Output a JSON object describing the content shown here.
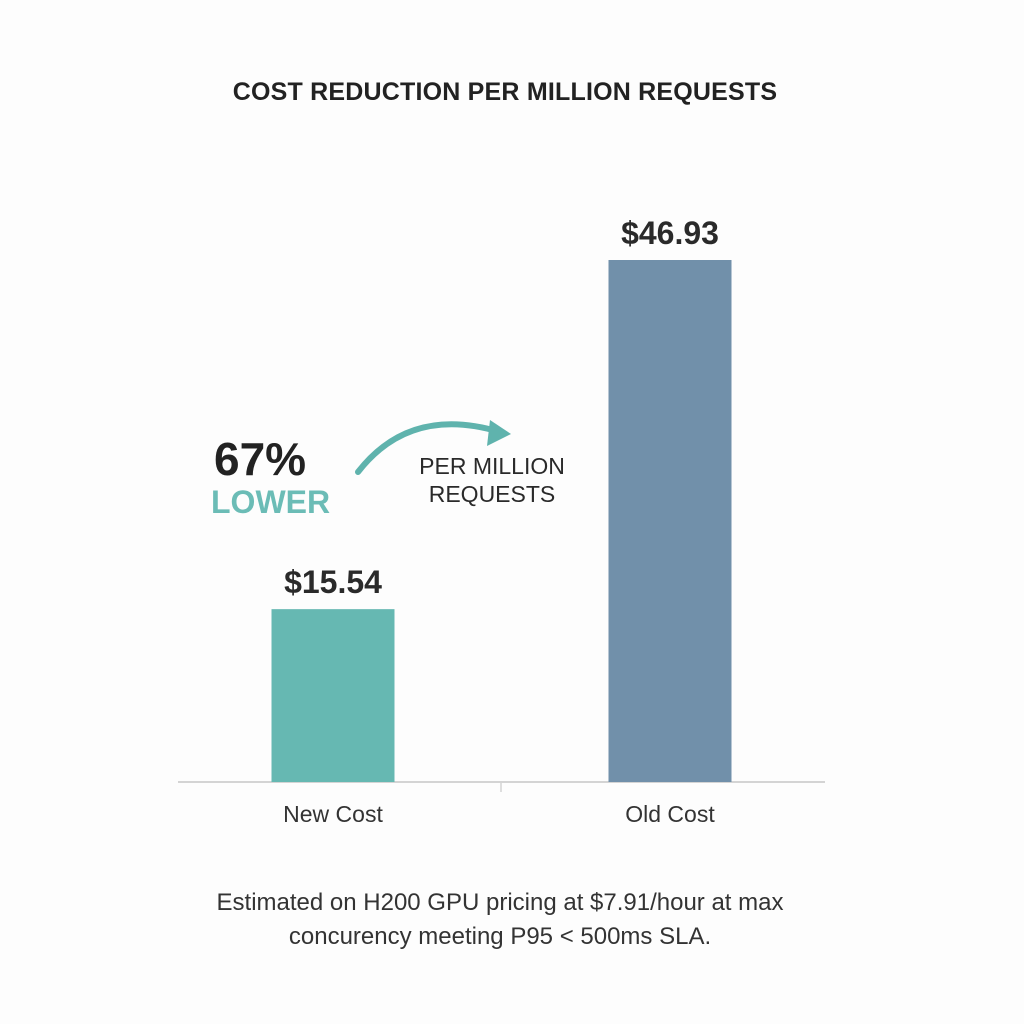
{
  "chart_data": {
    "type": "bar",
    "title": "COST REDUCTION PER MILLION REQUESTS",
    "categories": [
      "New Cost",
      "Old Cost"
    ],
    "values": [
      15.54,
      46.93
    ],
    "data_labels": [
      "$15.54",
      "$46.93"
    ],
    "colors": [
      "#66b8b2",
      "#7190aa"
    ],
    "xlabel": "",
    "ylabel": "",
    "ylim": [
      0,
      46.93
    ],
    "grid": false,
    "annotation": {
      "percent": "67%",
      "percent_label": "LOWER",
      "note_line1": "PER MILLION",
      "note_line2": "REQUESTS",
      "arrow_color": "#5fb3ad"
    },
    "footnote_line1": "Estimated on H200 GPU pricing at $7.91/hour at max",
    "footnote_line2": "concurency meeting P95 < 500ms SLA."
  }
}
